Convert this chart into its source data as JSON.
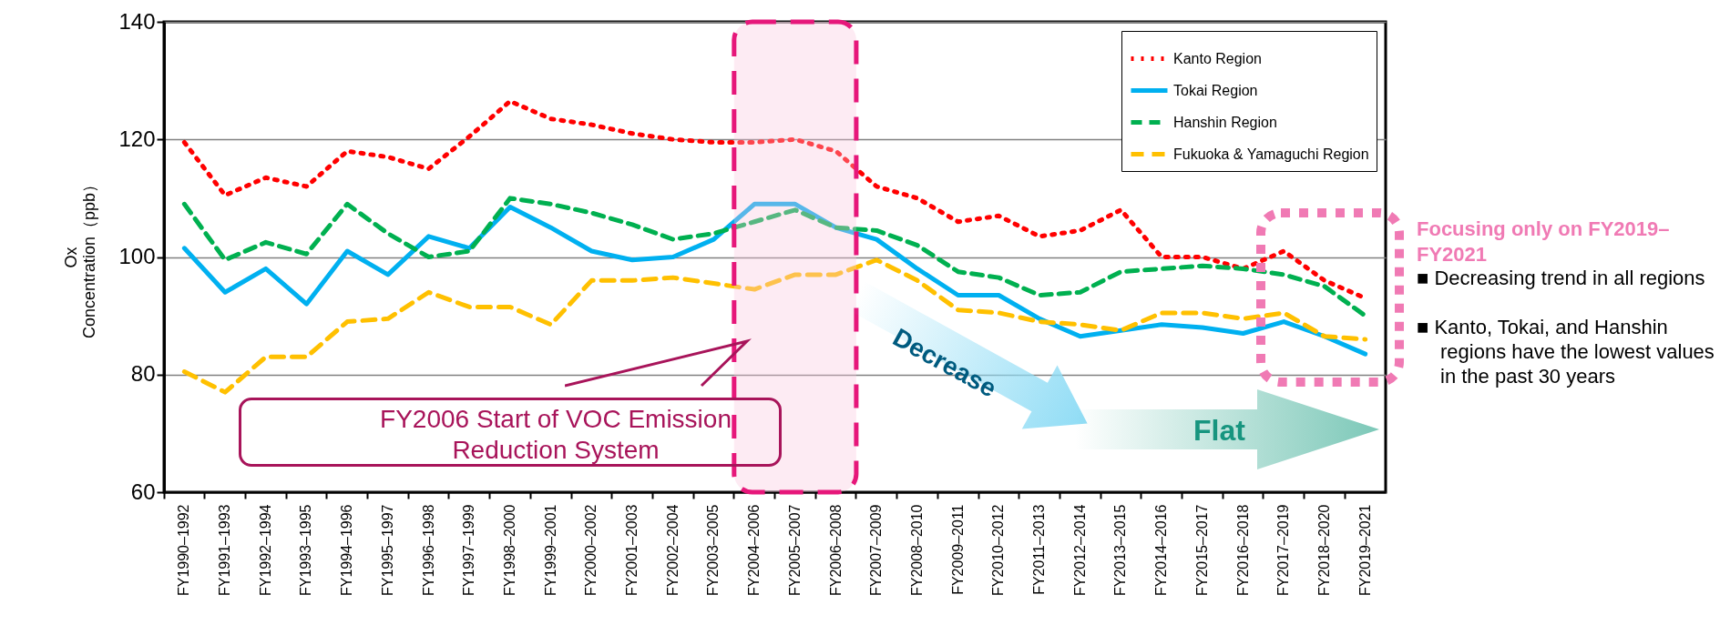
{
  "chart_data": {
    "type": "line",
    "ylabel": "Ox\nConcentration（ppb）",
    "categories": [
      "FY1990–1992",
      "FY1991–1993",
      "FY1992–1994",
      "FY1993–1995",
      "FY1994–1996",
      "FY1995–1997",
      "FY1996–1998",
      "FY1997–1999",
      "FY1998–2000",
      "FY1999–2001",
      "FY2000–2002",
      "FY2001–2003",
      "FY2002–2004",
      "FY2003–2005",
      "FY2004–2006",
      "FY2005–2007",
      "FY2006–2008",
      "FY2007–2009",
      "FY2008–2010",
      "FY2009–2011",
      "FY2010–2012",
      "FY2011–2013",
      "FY2012–2014",
      "FY2013–2015",
      "FY2014–2016",
      "FY2015–2017",
      "FY2016–2018",
      "FY2017–2019",
      "FY2018–2020",
      "FY2019–2021"
    ],
    "series": [
      {
        "name": "Kanto Region",
        "color": "#ff0000",
        "line_style": "dotted",
        "values": [
          119.5,
          110.5,
          113.5,
          112,
          118,
          117,
          115,
          120.5,
          126.5,
          123.5,
          122.5,
          121,
          120,
          119.5,
          119.5,
          120,
          118,
          112,
          110,
          106,
          107,
          103.5,
          104.5,
          108,
          100,
          100,
          98,
          101,
          96,
          93
        ]
      },
      {
        "name": "Tokai Region",
        "color": "#00b0f0",
        "line_style": "solid",
        "values": [
          101.5,
          94,
          98,
          92,
          101,
          97,
          103.5,
          101.5,
          108.5,
          105,
          101,
          99.5,
          100,
          103,
          109,
          109,
          105,
          103,
          98,
          93.5,
          93.5,
          89.5,
          86.5,
          87.5,
          88.5,
          88,
          87,
          89,
          86.5,
          83.5
        ]
      },
      {
        "name": "Hanshin Region",
        "color": "#00b050",
        "line_style": "dashed",
        "values": [
          109,
          99.5,
          102.5,
          100.5,
          109,
          104,
          100,
          101,
          110,
          109,
          107.5,
          105.5,
          103,
          104,
          106,
          108,
          105,
          104.5,
          102,
          97.5,
          96.5,
          93.5,
          94,
          97.5,
          98,
          98.5,
          98,
          97,
          95,
          90
        ]
      },
      {
        "name": "Fukuoka & Yamaguchi Region",
        "color": "#ffc000",
        "line_style": "dashed",
        "values": [
          80.5,
          77,
          83,
          83,
          89,
          89.5,
          94,
          91.5,
          91.5,
          88.5,
          96,
          96,
          96.5,
          95.5,
          94.5,
          97,
          97,
          99.5,
          96,
          91,
          90.5,
          89,
          88.5,
          87.5,
          90.5,
          90.5,
          89.5,
          90.5,
          86.5,
          86
        ]
      }
    ],
    "ylim": [
      60,
      140
    ],
    "yticks": [
      60,
      80,
      100,
      120,
      140
    ],
    "grid": "y",
    "legend": "top right",
    "bands": [
      {
        "axis": "x",
        "from": "FY2004–2006",
        "to": "FY2006–2008",
        "color": "#e6177a"
      }
    ],
    "annotations": [
      "FY2006 Start of VOC Emission Reduction System",
      "Decrease",
      "Flat",
      "Focusing only on FY2019–FY2021",
      "■ Decreasing trend in all regions",
      "■ Kanto, Tokai, and Hanshin regions have the lowest values in the past 30 years"
    ]
  }
}
